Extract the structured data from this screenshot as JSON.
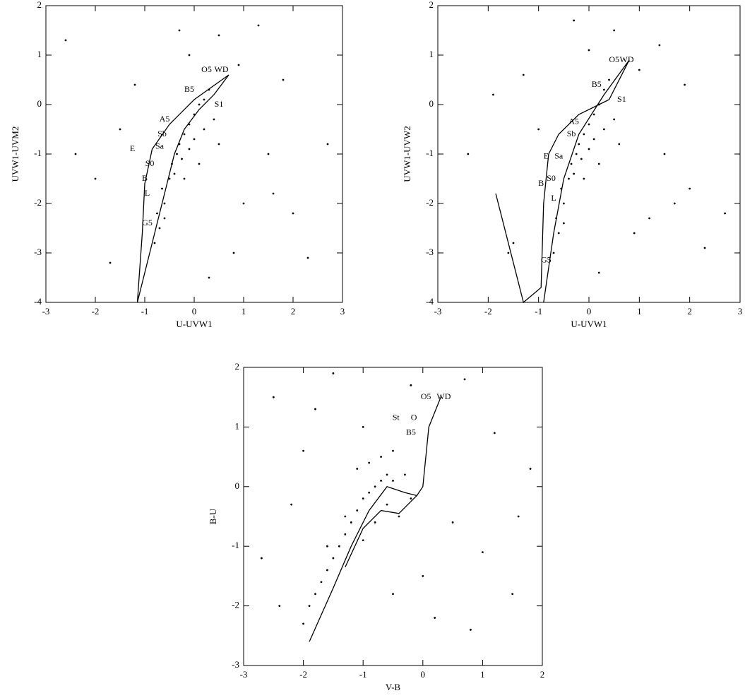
{
  "chart_data": [
    {
      "type": "scatter",
      "xlabel": "U-UVW1",
      "ylabel": "UVW1-UVM2",
      "xlim": [
        -3,
        3
      ],
      "ylim": [
        -4,
        2
      ],
      "xticks": [
        -3,
        -2,
        -1,
        0,
        1,
        2,
        3
      ],
      "yticks": [
        -4,
        -3,
        -2,
        -1,
        0,
        1,
        2
      ],
      "series": [
        {
          "color": "#000000",
          "x": [
            -0.8,
            -0.7,
            -0.75,
            -0.6,
            -0.65,
            -0.5,
            -0.45,
            -0.35,
            -0.3,
            -0.2,
            -0.1,
            0.0,
            0.1,
            0.2,
            0.3,
            -0.6,
            -0.4,
            -0.25,
            -0.1,
            0.0,
            0.2,
            0.4,
            -0.2,
            0.1,
            0.5,
            -2.6,
            -2.0,
            -1.5,
            1.5,
            2.3,
            1.0,
            0.5,
            -0.3,
            1.8,
            2.7,
            -1.2,
            0.8,
            -1.7,
            1.3,
            0.3,
            2.0,
            -2.4,
            -0.1,
            0.9,
            1.6
          ],
          "values": [
            -2.8,
            -2.5,
            -2.2,
            -2.0,
            -1.7,
            -1.5,
            -1.2,
            -1.0,
            -0.8,
            -0.6,
            -0.4,
            -0.2,
            0.0,
            0.1,
            0.3,
            -2.3,
            -1.4,
            -1.1,
            -0.9,
            -0.7,
            -0.5,
            -0.3,
            -1.5,
            -1.2,
            -0.8,
            1.3,
            -1.5,
            -0.5,
            -1.0,
            -3.1,
            -2.0,
            1.4,
            1.5,
            0.5,
            -0.8,
            0.4,
            -3.0,
            -3.2,
            1.6,
            -3.5,
            -2.2,
            -1.0,
            1.0,
            0.8,
            -1.8
          ]
        }
      ],
      "lines": [
        {
          "color": "#000000",
          "x": [
            -1.15,
            -0.95,
            -0.75,
            -0.55,
            -0.4,
            -0.2,
            0.1,
            0.4,
            0.7,
            0.0,
            -0.5,
            -0.85,
            -1.0,
            -1.05,
            -1.15
          ],
          "values": [
            -4.0,
            -3.2,
            -2.4,
            -1.6,
            -1.0,
            -0.5,
            -0.1,
            0.2,
            0.6,
            0.1,
            -0.4,
            -0.9,
            -1.6,
            -2.6,
            -4.0
          ]
        }
      ],
      "annotations": [
        {
          "text": "O5",
          "x": 0.25,
          "y": 0.7
        },
        {
          "text": "WD",
          "x": 0.55,
          "y": 0.7
        },
        {
          "text": "B5",
          "x": -0.1,
          "y": 0.3
        },
        {
          "text": "S1",
          "x": 0.5,
          "y": 0.0
        },
        {
          "text": "A5",
          "x": -0.6,
          "y": -0.3
        },
        {
          "text": "Sb",
          "x": -0.65,
          "y": -0.6
        },
        {
          "text": "Sa",
          "x": -0.7,
          "y": -0.85
        },
        {
          "text": "E",
          "x": -1.25,
          "y": -0.9
        },
        {
          "text": "S0",
          "x": -0.9,
          "y": -1.2
        },
        {
          "text": "B",
          "x": -1.0,
          "y": -1.5
        },
        {
          "text": "L",
          "x": -0.95,
          "y": -1.8
        },
        {
          "text": "G5",
          "x": -0.95,
          "y": -2.4
        }
      ]
    },
    {
      "type": "scatter",
      "xlabel": "U-UVW1",
      "ylabel": "UVW1-UVW2",
      "xlim": [
        -3,
        3
      ],
      "ylim": [
        -4,
        2
      ],
      "xticks": [
        -3,
        -2,
        -1,
        0,
        1,
        2,
        3
      ],
      "yticks": [
        -4,
        -3,
        -2,
        -1,
        0,
        1,
        2
      ],
      "series": [
        {
          "color": "#000000",
          "x": [
            -0.7,
            -0.6,
            -0.65,
            -0.5,
            -0.55,
            -0.4,
            -0.35,
            -0.25,
            -0.2,
            -0.1,
            0.0,
            0.1,
            0.2,
            0.3,
            0.4,
            -0.5,
            -0.3,
            -0.15,
            0.0,
            0.1,
            0.3,
            0.5,
            -0.1,
            0.2,
            0.6,
            -1.9,
            -1.5,
            -1.0,
            1.5,
            2.3,
            1.2,
            0.5,
            -0.3,
            1.9,
            2.7,
            -1.3,
            0.9,
            -1.6,
            1.4,
            0.2,
            2.0,
            -2.4,
            0.0,
            1.0,
            1.7
          ],
          "values": [
            -3.0,
            -2.6,
            -2.3,
            -2.0,
            -1.7,
            -1.5,
            -1.2,
            -1.0,
            -0.8,
            -0.6,
            -0.4,
            -0.2,
            0.0,
            0.3,
            0.5,
            -2.4,
            -1.4,
            -1.1,
            -0.9,
            -0.7,
            -0.5,
            -0.3,
            -1.5,
            -1.2,
            -0.8,
            0.2,
            -2.8,
            -0.5,
            -1.0,
            -2.9,
            -2.3,
            1.5,
            1.7,
            0.4,
            -2.2,
            0.6,
            -2.6,
            -3.0,
            1.2,
            -3.4,
            -1.7,
            -1.0,
            1.1,
            0.7,
            -2.0
          ]
        }
      ],
      "lines": [
        {
          "color": "#000000",
          "x": [
            0.8,
            0.3,
            -0.2,
            -0.5,
            -0.7,
            -0.9
          ],
          "values": [
            0.9,
            0.2,
            -0.6,
            -1.5,
            -2.6,
            -4.0
          ]
        },
        {
          "color": "#000000",
          "x": [
            0.8,
            0.4,
            -0.2,
            -0.6,
            -0.8,
            -0.9,
            -0.95,
            -1.3,
            -1.85
          ],
          "values": [
            0.9,
            0.1,
            -0.2,
            -0.6,
            -1.0,
            -2.0,
            -3.7,
            -4.0,
            -1.8
          ]
        }
      ],
      "annotations": [
        {
          "text": "O5",
          "x": 0.5,
          "y": 0.9
        },
        {
          "text": "WD",
          "x": 0.75,
          "y": 0.9
        },
        {
          "text": "B5",
          "x": 0.15,
          "y": 0.4
        },
        {
          "text": "S1",
          "x": 0.65,
          "y": 0.1
        },
        {
          "text": "A5",
          "x": -0.3,
          "y": -0.35
        },
        {
          "text": "Sb",
          "x": -0.35,
          "y": -0.6
        },
        {
          "text": "E",
          "x": -0.85,
          "y": -1.05
        },
        {
          "text": "Sa",
          "x": -0.6,
          "y": -1.05
        },
        {
          "text": "S0",
          "x": -0.75,
          "y": -1.5
        },
        {
          "text": "B",
          "x": -0.95,
          "y": -1.6
        },
        {
          "text": "L",
          "x": -0.7,
          "y": -1.9
        },
        {
          "text": "G5",
          "x": -0.85,
          "y": -3.15
        }
      ]
    },
    {
      "type": "scatter",
      "xlabel": "V-B",
      "ylabel": "B-U",
      "xlim": [
        -3,
        2
      ],
      "ylim": [
        -3,
        2
      ],
      "xticks": [
        -3,
        -2,
        -1,
        0,
        1,
        2
      ],
      "yticks": [
        -3,
        -2,
        -1,
        0,
        1,
        2
      ],
      "series": [
        {
          "color": "#000000",
          "x": [
            -2.0,
            -1.9,
            -1.8,
            -1.7,
            -1.6,
            -1.5,
            -1.4,
            -1.3,
            -1.2,
            -1.1,
            -1.0,
            -0.9,
            -0.8,
            -0.7,
            -0.6,
            -0.5,
            -1.6,
            -1.3,
            -1.0,
            -0.8,
            -0.6,
            -0.4,
            -0.2,
            -1.1,
            -0.9,
            -0.7,
            -0.5,
            -0.3,
            -2.5,
            -2.2,
            -1.8,
            -2.7,
            1.0,
            1.5,
            1.8,
            0.7,
            -0.2,
            0.5,
            -1.5,
            -0.5,
            0.2,
            1.2,
            -2.0,
            -1.0,
            0.0,
            0.8,
            -2.4,
            1.6
          ],
          "values": [
            -2.3,
            -2.0,
            -1.8,
            -1.6,
            -1.4,
            -1.2,
            -1.0,
            -0.8,
            -0.6,
            -0.4,
            -0.2,
            -0.1,
            0.0,
            0.1,
            0.2,
            0.1,
            -1.0,
            -0.5,
            -0.9,
            -0.6,
            -0.3,
            -0.5,
            -0.2,
            0.3,
            0.4,
            0.5,
            0.6,
            0.2,
            1.5,
            -0.3,
            1.3,
            -1.2,
            -1.1,
            -1.8,
            0.3,
            1.8,
            1.7,
            -0.6,
            1.9,
            -1.8,
            -2.2,
            0.9,
            0.6,
            1.0,
            -1.5,
            -2.4,
            -2.0,
            -0.5
          ]
        }
      ],
      "lines": [
        {
          "color": "#000000",
          "x": [
            -1.9,
            -1.5,
            -1.2,
            -0.9,
            -0.6,
            -0.3,
            -0.1,
            0.0,
            0.1,
            0.3
          ],
          "values": [
            -2.6,
            -1.7,
            -1.0,
            -0.4,
            0.0,
            -0.1,
            -0.15,
            0.0,
            1.0,
            1.5
          ]
        },
        {
          "color": "#000000",
          "x": [
            -1.3,
            -1.0,
            -0.7,
            -0.4,
            -0.1
          ],
          "values": [
            -1.35,
            -0.7,
            -0.4,
            -0.45,
            -0.15
          ]
        }
      ],
      "annotations": [
        {
          "text": "O5",
          "x": 0.05,
          "y": 1.5
        },
        {
          "text": "WD",
          "x": 0.35,
          "y": 1.5
        },
        {
          "text": "St",
          "x": -0.45,
          "y": 1.15
        },
        {
          "text": "O",
          "x": -0.15,
          "y": 1.15
        },
        {
          "text": "B5",
          "x": -0.2,
          "y": 0.9
        }
      ]
    }
  ]
}
